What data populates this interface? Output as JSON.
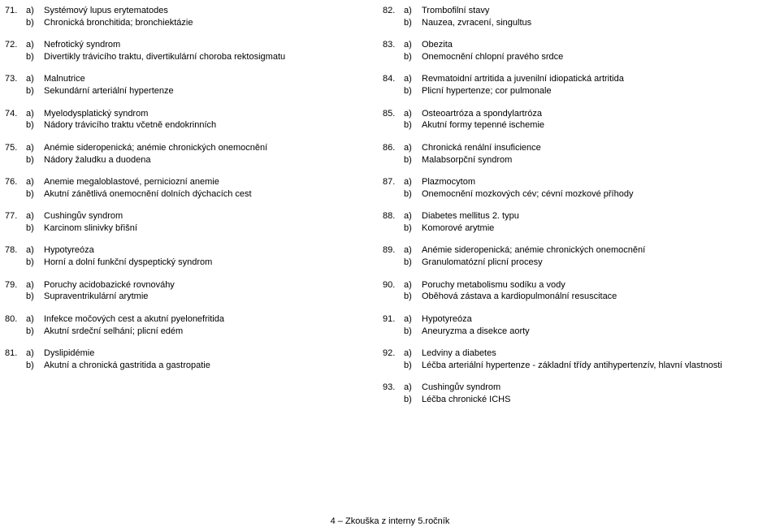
{
  "left": [
    {
      "n": "71.",
      "a": "Systémový lupus erytematodes",
      "b": "Chronická bronchitida; bronchiektázie"
    },
    {
      "n": "72.",
      "a": "Nefrotický syndrom",
      "b": "Divertikly trávicího traktu, divertikulární choroba rektosigmatu"
    },
    {
      "n": "73.",
      "a": "Malnutrice",
      "b": "Sekundární arteriální hypertenze"
    },
    {
      "n": "74.",
      "a": "Myelodysplatický syndrom",
      "b": "Nádory trávicího traktu včetně endokrinních"
    },
    {
      "n": "75.",
      "a": "Anémie sideropenická; anémie chronických onemocnění",
      "b": "Nádory žaludku a duodena"
    },
    {
      "n": "76.",
      "a": "Anemie megaloblastové, perniciozní anemie",
      "b": "Akutní zánětlivá onemocnění dolních dýchacích cest"
    },
    {
      "n": "77.",
      "a": "Cushingův syndrom",
      "b": "Karcinom slinivky břišní"
    },
    {
      "n": "78.",
      "a": "Hypotyreóza",
      "b": "Horní a dolní funkční dyspeptický syndrom"
    },
    {
      "n": "79.",
      "a": "Poruchy acidobazické rovnováhy",
      "b": "Supraventrikulární arytmie"
    },
    {
      "n": "80.",
      "a": "Infekce močových cest a akutní pyelonefritida",
      "b": "Akutní srdeční selhání; plicní edém"
    },
    {
      "n": "81.",
      "a": "Dyslipidémie",
      "b": "Akutní a chronická gastritida a gastropatie"
    }
  ],
  "right": [
    {
      "n": "82.",
      "a": "Trombofilní stavy",
      "b": "Nauzea, zvracení, singultus"
    },
    {
      "n": "83.",
      "a": "Obezita",
      "b": "Onemocnění chlopní pravého srdce"
    },
    {
      "n": "84.",
      "a": "Revmatoidní artritida a juvenilní idiopatická artritida",
      "b": "Plicní hypertenze; cor pulmonale"
    },
    {
      "n": "85.",
      "a": "Osteoartróza a spondylartróza",
      "b": "Akutní formy tepenné ischemie"
    },
    {
      "n": "86.",
      "a": "Chronická renální insuficience",
      "b": "Malabsorpční syndrom"
    },
    {
      "n": "87.",
      "a": "Plazmocytom",
      "b": "Onemocnění mozkových cév; cévní mozkové příhody"
    },
    {
      "n": "88.",
      "a": "Diabetes mellitus 2. typu",
      "b": "Komorové arytmie"
    },
    {
      "n": "89.",
      "a": "Anémie sideropenická; anémie chronických onemocnění",
      "b": "Granulomatózní plicní procesy"
    },
    {
      "n": "90.",
      "a": "Poruchy metabolismu sodíku a vody",
      "b": "Oběhová zástava a kardiopulmonální resuscitace"
    },
    {
      "n": "91.",
      "a": "Hypotyreóza",
      "b": "Aneuryzma a disekce aorty"
    },
    {
      "n": "92.",
      "a": "Ledviny a diabetes",
      "b": "Léčba arteriální hypertenze - základní třídy antihypertenzív, hlavní vlastnosti"
    },
    {
      "n": "93.",
      "a": "Cushingův syndrom",
      "b": "Léčba chronické ICHS"
    }
  ],
  "footer": "4 – Zkouška z interny 5.ročník"
}
